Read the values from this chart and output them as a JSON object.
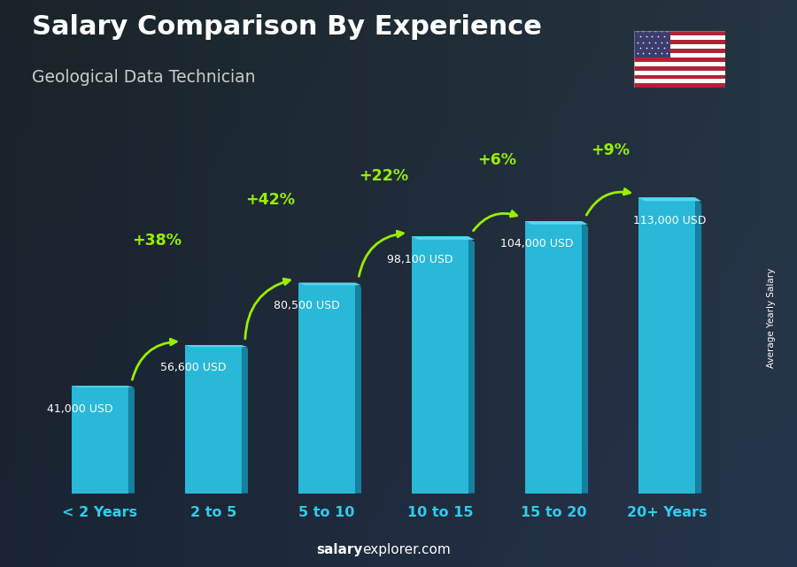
{
  "title": "Salary Comparison By Experience",
  "subtitle": "Geological Data Technician",
  "categories": [
    "< 2 Years",
    "2 to 5",
    "5 to 10",
    "10 to 15",
    "15 to 20",
    "20+ Years"
  ],
  "values": [
    41000,
    56600,
    80500,
    98100,
    104000,
    113000
  ],
  "value_labels": [
    "41,000 USD",
    "56,600 USD",
    "80,500 USD",
    "98,100 USD",
    "104,000 USD",
    "113,000 USD"
  ],
  "pct_changes": [
    "+38%",
    "+42%",
    "+22%",
    "+6%",
    "+9%"
  ],
  "bar_color_main": "#29b8d8",
  "bar_color_side": "#1580a0",
  "bar_color_top": "#55d8f0",
  "bg_color": "#1a2535",
  "title_color": "#ffffff",
  "subtitle_color": "#cccccc",
  "label_color": "#ffffff",
  "pct_color": "#99ee00",
  "xticklabel_color": "#30ccee",
  "ylabel": "Average Yearly Salary",
  "footer_bold": "salary",
  "footer_normal": "explorer.com",
  "ylim": [
    0,
    130000
  ],
  "arc_data": [
    [
      0,
      1,
      "+38%"
    ],
    [
      1,
      2,
      "+42%"
    ],
    [
      2,
      3,
      "+22%"
    ],
    [
      3,
      4,
      "+6%"
    ],
    [
      4,
      5,
      "+9%"
    ]
  ]
}
